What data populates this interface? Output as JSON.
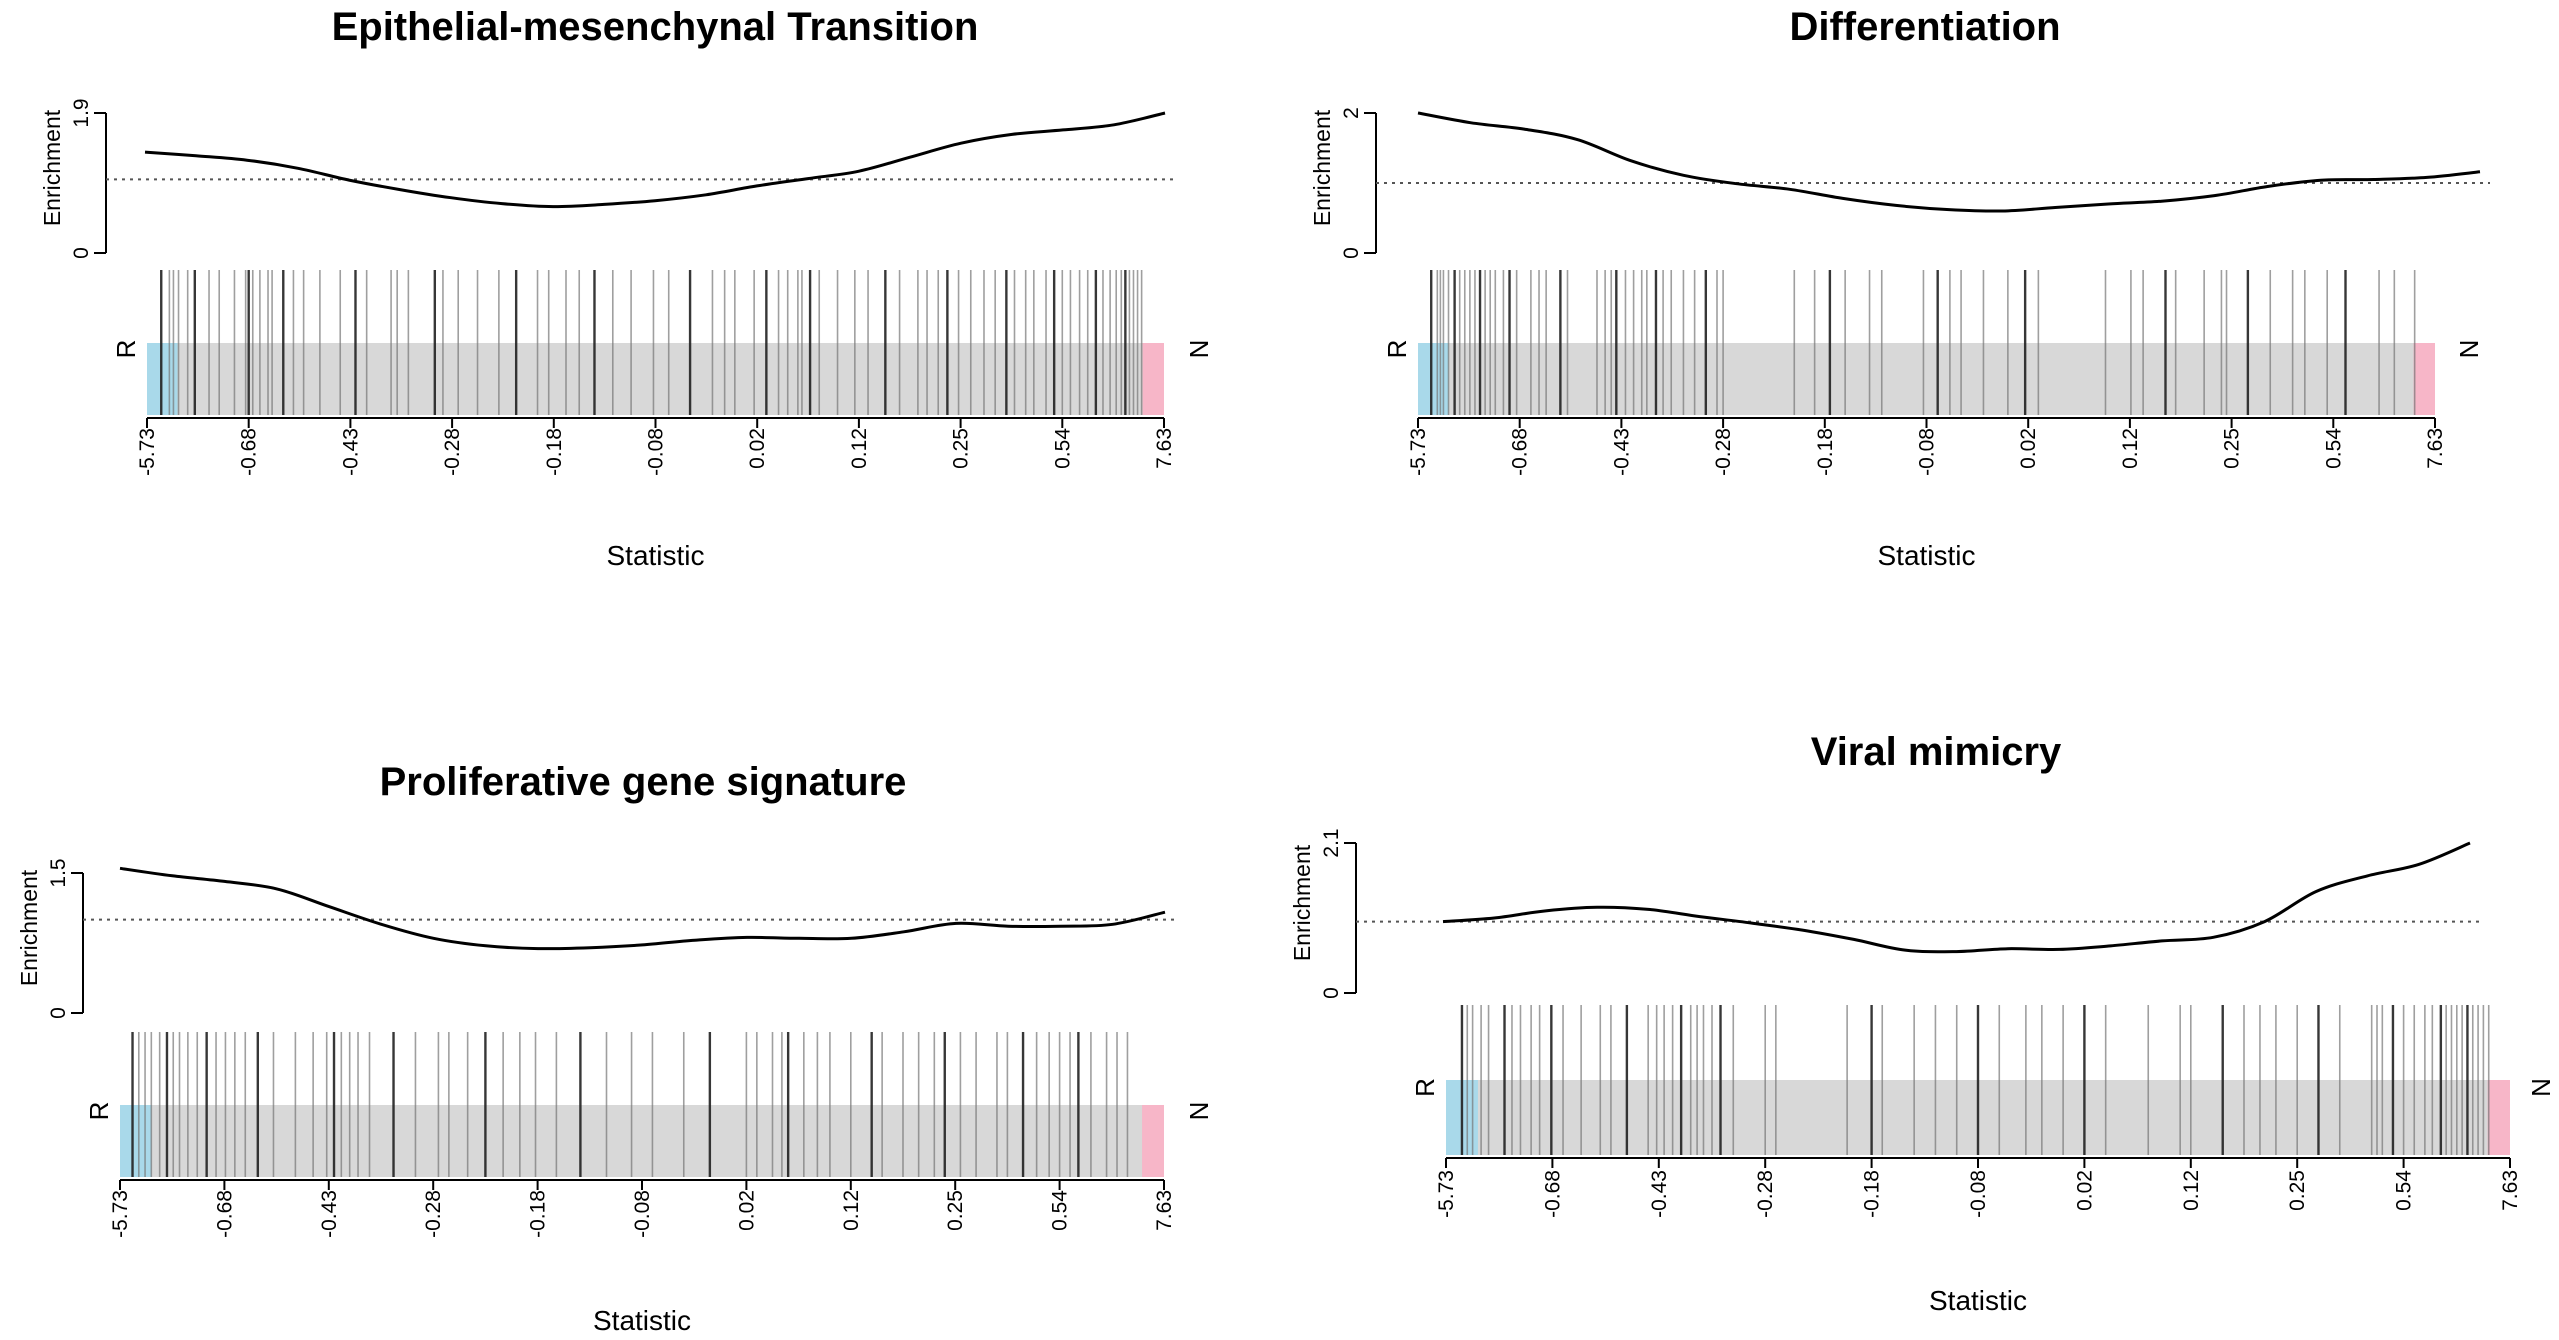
{
  "chart_data": [
    {
      "type": "barcode-enrichment",
      "title": "Epithelial-mesenchynal Transition",
      "xlabel": "Statistic",
      "ylabel": "Enrichment",
      "y_ticks": [
        "0",
        "1.9"
      ],
      "ylim": [
        0,
        1.9
      ],
      "x_tick_labels": [
        "-5.73",
        "-0.68",
        "-0.43",
        "-0.28",
        "-0.18",
        "-0.08",
        "0.02",
        "0.12",
        "0.25",
        "0.54",
        "7.63"
      ],
      "left_label": "R",
      "right_label": "N",
      "reference_level": 1.0,
      "curve_x": [
        0,
        0.05,
        0.1,
        0.15,
        0.2,
        0.25,
        0.3,
        0.35,
        0.4,
        0.45,
        0.5,
        0.55,
        0.6,
        0.65,
        0.7,
        0.75,
        0.8,
        0.85,
        0.9,
        0.95,
        1.0
      ],
      "curve_y": [
        1.37,
        1.32,
        1.26,
        1.15,
        0.99,
        0.86,
        0.75,
        0.67,
        0.63,
        0.66,
        0.71,
        0.79,
        0.91,
        1.01,
        1.11,
        1.3,
        1.49,
        1.61,
        1.67,
        1.74,
        1.9
      ],
      "gene_positions": [
        0.014,
        0.022,
        0.026,
        0.031,
        0.04,
        0.047,
        0.061,
        0.071,
        0.086,
        0.097,
        0.1,
        0.104,
        0.111,
        0.119,
        0.123,
        0.134,
        0.144,
        0.154,
        0.17,
        0.19,
        0.205,
        0.216,
        0.24,
        0.246,
        0.257,
        0.283,
        0.291,
        0.306,
        0.325,
        0.346,
        0.363,
        0.384,
        0.395,
        0.412,
        0.425,
        0.44,
        0.458,
        0.476,
        0.498,
        0.513,
        0.534,
        0.556,
        0.568,
        0.578,
        0.597,
        0.609,
        0.621,
        0.63,
        0.64,
        0.644,
        0.652,
        0.661,
        0.679,
        0.696,
        0.709,
        0.726,
        0.74,
        0.758,
        0.767,
        0.778,
        0.787,
        0.798,
        0.81,
        0.823,
        0.834,
        0.845,
        0.853,
        0.864,
        0.872,
        0.884,
        0.892,
        0.9,
        0.908,
        0.917,
        0.925,
        0.933,
        0.94,
        0.947,
        0.953,
        0.958,
        0.962,
        0.966,
        0.97,
        0.974,
        0.978
      ]
    },
    {
      "type": "barcode-enrichment",
      "title": "Differentiation",
      "xlabel": "Statistic",
      "ylabel": "Enrichment",
      "y_ticks": [
        "0",
        "2"
      ],
      "ylim": [
        0,
        2
      ],
      "x_tick_labels": [
        "-5.73",
        "-0.68",
        "-0.43",
        "-0.28",
        "-0.18",
        "-0.08",
        "0.02",
        "0.12",
        "0.25",
        "0.54",
        "7.63"
      ],
      "left_label": "R",
      "right_label": "N",
      "reference_level": 1.0,
      "curve_x": [
        0,
        0.05,
        0.1,
        0.15,
        0.2,
        0.25,
        0.3,
        0.35,
        0.4,
        0.45,
        0.5,
        0.55,
        0.6,
        0.65,
        0.7,
        0.75,
        0.8,
        0.85,
        0.9,
        0.95,
        1.0
      ],
      "curve_y": [
        2.0,
        1.86,
        1.77,
        1.62,
        1.32,
        1.11,
        0.99,
        0.91,
        0.78,
        0.68,
        0.62,
        0.6,
        0.65,
        0.7,
        0.74,
        0.82,
        0.95,
        1.04,
        1.05,
        1.08,
        1.16
      ],
      "gene_positions": [
        0.013,
        0.019,
        0.022,
        0.025,
        0.03,
        0.036,
        0.041,
        0.046,
        0.051,
        0.056,
        0.061,
        0.066,
        0.071,
        0.076,
        0.084,
        0.09,
        0.097,
        0.111,
        0.119,
        0.126,
        0.14,
        0.147,
        0.176,
        0.184,
        0.19,
        0.195,
        0.204,
        0.212,
        0.22,
        0.225,
        0.234,
        0.241,
        0.249,
        0.261,
        0.272,
        0.283,
        0.294,
        0.3,
        0.37,
        0.39,
        0.405,
        0.42,
        0.444,
        0.456,
        0.497,
        0.511,
        0.523,
        0.534,
        0.556,
        0.58,
        0.597,
        0.61,
        0.676,
        0.701,
        0.713,
        0.735,
        0.745,
        0.773,
        0.79,
        0.795,
        0.816,
        0.838,
        0.86,
        0.872,
        0.894,
        0.912,
        0.945,
        0.96,
        0.98
      ]
    },
    {
      "type": "barcode-enrichment",
      "title": "Proliferative gene signature",
      "xlabel": "Statistic",
      "ylabel": "Enrichment",
      "y_ticks": [
        "0",
        "1.5"
      ],
      "ylim": [
        0,
        1.5
      ],
      "x_tick_labels": [
        "-5.73",
        "-0.68",
        "-0.43",
        "-0.28",
        "-0.18",
        "-0.08",
        "0.02",
        "0.12",
        "0.25",
        "0.54",
        "7.63"
      ],
      "left_label": "R",
      "right_label": "N",
      "reference_level": 1.0,
      "curve_x": [
        0,
        0.05,
        0.1,
        0.15,
        0.2,
        0.25,
        0.3,
        0.35,
        0.4,
        0.45,
        0.5,
        0.55,
        0.6,
        0.65,
        0.7,
        0.75,
        0.8,
        0.85,
        0.9,
        0.95,
        1.0
      ],
      "curve_y": [
        1.55,
        1.47,
        1.41,
        1.33,
        1.14,
        0.95,
        0.8,
        0.72,
        0.69,
        0.7,
        0.73,
        0.78,
        0.81,
        0.8,
        0.8,
        0.87,
        0.96,
        0.93,
        0.93,
        0.95,
        1.08
      ],
      "gene_positions": [
        0.012,
        0.018,
        0.024,
        0.03,
        0.038,
        0.045,
        0.051,
        0.057,
        0.065,
        0.074,
        0.083,
        0.092,
        0.101,
        0.11,
        0.12,
        0.132,
        0.147,
        0.168,
        0.185,
        0.198,
        0.205,
        0.212,
        0.22,
        0.228,
        0.239,
        0.262,
        0.283,
        0.305,
        0.315,
        0.333,
        0.35,
        0.367,
        0.383,
        0.398,
        0.418,
        0.441,
        0.466,
        0.49,
        0.51,
        0.54,
        0.565,
        0.6,
        0.61,
        0.625,
        0.634,
        0.64,
        0.655,
        0.668,
        0.68,
        0.7,
        0.72,
        0.73,
        0.75,
        0.765,
        0.78,
        0.79,
        0.805,
        0.82,
        0.84,
        0.85,
        0.865,
        0.878,
        0.89,
        0.9,
        0.91,
        0.918,
        0.93,
        0.945,
        0.955,
        0.965
      ]
    },
    {
      "type": "barcode-enrichment",
      "title": "Viral mimicry",
      "xlabel": "Statistic",
      "ylabel": "Enrichment",
      "y_ticks": [
        "0",
        "2.1"
      ],
      "ylim": [
        0,
        2.1
      ],
      "x_tick_labels": [
        "-5.73",
        "-0.68",
        "-0.43",
        "-0.28",
        "-0.18",
        "-0.08",
        "0.02",
        "0.12",
        "0.25",
        "0.54",
        "7.63"
      ],
      "left_label": "R",
      "right_label": "N",
      "reference_level": 1.0,
      "curve_x": [
        0,
        0.05,
        0.1,
        0.15,
        0.2,
        0.25,
        0.3,
        0.35,
        0.4,
        0.45,
        0.5,
        0.55,
        0.6,
        0.65,
        0.7,
        0.75,
        0.8,
        0.85,
        0.9,
        0.95,
        1.0
      ],
      "curve_y": [
        1.0,
        1.05,
        1.15,
        1.2,
        1.17,
        1.07,
        0.98,
        0.88,
        0.75,
        0.6,
        0.58,
        0.62,
        0.61,
        0.66,
        0.73,
        0.78,
        1.0,
        1.42,
        1.64,
        1.8,
        2.1
      ],
      "gene_positions": [
        0.015,
        0.02,
        0.025,
        0.033,
        0.04,
        0.055,
        0.062,
        0.07,
        0.08,
        0.088,
        0.099,
        0.11,
        0.127,
        0.145,
        0.155,
        0.17,
        0.19,
        0.198,
        0.205,
        0.213,
        0.221,
        0.23,
        0.236,
        0.242,
        0.25,
        0.258,
        0.27,
        0.3,
        0.31,
        0.377,
        0.4,
        0.41,
        0.44,
        0.46,
        0.48,
        0.5,
        0.52,
        0.545,
        0.56,
        0.58,
        0.6,
        0.62,
        0.66,
        0.69,
        0.7,
        0.73,
        0.75,
        0.765,
        0.78,
        0.8,
        0.82,
        0.84,
        0.87,
        0.875,
        0.88,
        0.89,
        0.9,
        0.91,
        0.92,
        0.927,
        0.935,
        0.94,
        0.945,
        0.95,
        0.955,
        0.96,
        0.965,
        0.97,
        0.975,
        0.98
      ]
    }
  ],
  "colors": {
    "left_block": "#a9d9ea",
    "right_block": "#f7b6c8",
    "barcode_bg": "#d8d8d8",
    "curve": "#000000",
    "gene_line": "#333333"
  }
}
